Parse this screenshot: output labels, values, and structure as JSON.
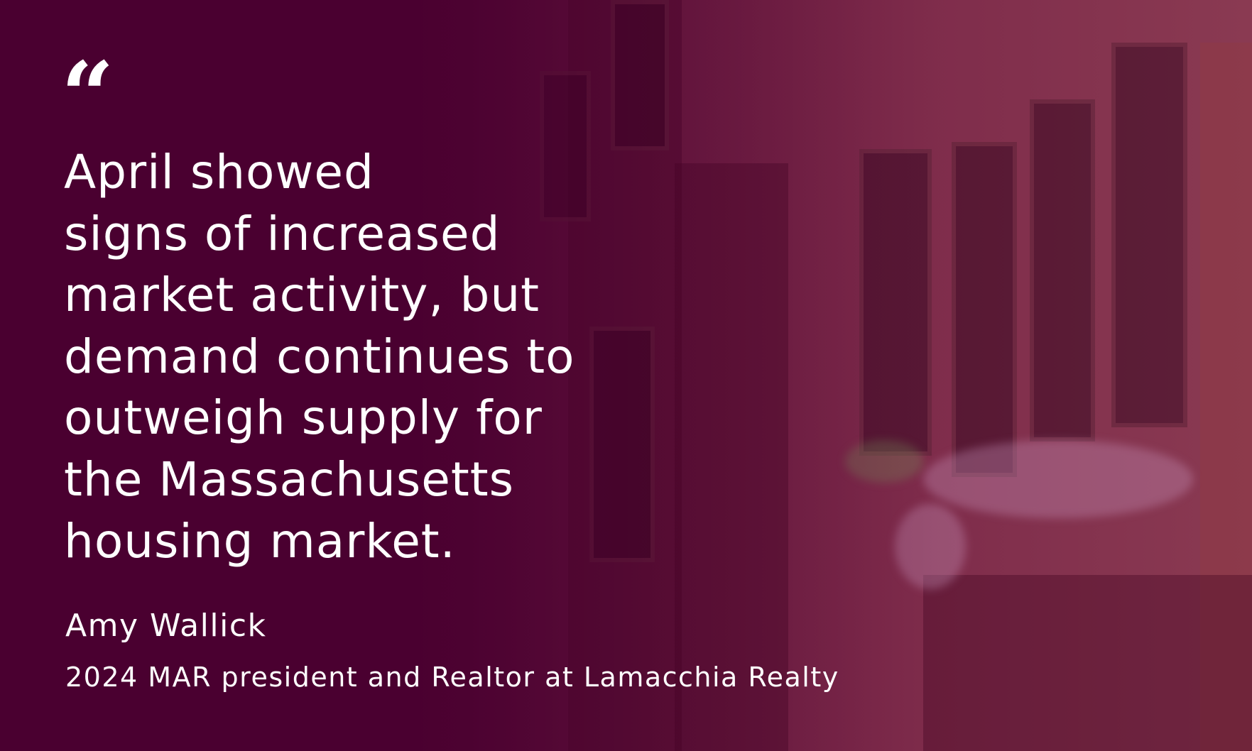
{
  "quote": {
    "mark": "“",
    "text": "April showed\nsigns of increased\nmarket activity, but\ndemand continues to\noutweigh supply for\nthe Massachusetts\nhousing market."
  },
  "attribution": {
    "name": "Amy Wallick",
    "title": "2024 MAR president and Realtor at Lamacchia Realty"
  },
  "colors": {
    "background": "#4a0030",
    "text": "#ffffff"
  }
}
